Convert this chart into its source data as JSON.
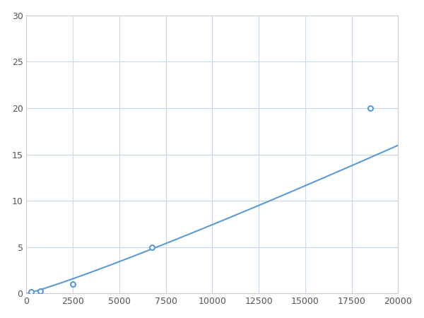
{
  "x_points": [
    250,
    750,
    2500,
    6750,
    18500
  ],
  "y_points": [
    0.2,
    0.3,
    1.0,
    5.0,
    20.0
  ],
  "line_color": "#5b9bd5",
  "marker_color": "#5b9bd5",
  "marker_size": 5,
  "line_width": 1.5,
  "xlim": [
    0,
    20000
  ],
  "ylim": [
    0,
    30
  ],
  "xticks": [
    0,
    2500,
    5000,
    7500,
    10000,
    12500,
    15000,
    17500,
    20000
  ],
  "yticks": [
    0,
    5,
    10,
    15,
    20,
    25,
    30
  ],
  "grid_color": "#c8d8e8",
  "background_color": "#ffffff",
  "figure_bg": "#ffffff"
}
